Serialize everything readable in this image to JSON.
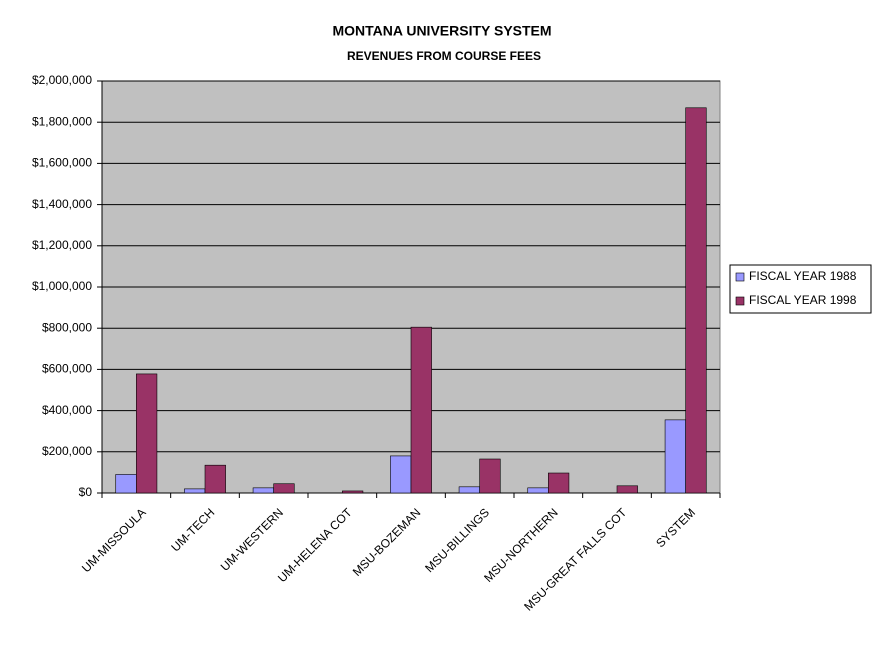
{
  "chart_data": {
    "type": "bar",
    "title": "MONTANA UNIVERSITY SYSTEM",
    "subtitle": "REVENUES FROM COURSE FEES",
    "categories": [
      "UM-MISSOULA",
      "UM-TECH",
      "UM-WESTERN",
      "UM-HELENA COT",
      "MSU-BOZEMAN",
      "MSU-BILLINGS",
      "MSU-NORTHERN",
      "MSU-GREAT FALLS COT",
      "SYSTEM"
    ],
    "series": [
      {
        "name": "FISCAL YEAR 1988",
        "color": "#9999ff",
        "values": [
          90000,
          20000,
          25000,
          0,
          180000,
          30000,
          25000,
          0,
          355000
        ]
      },
      {
        "name": "FISCAL YEAR 1998",
        "color": "#993366",
        "values": [
          578000,
          135000,
          45000,
          10000,
          805000,
          165000,
          97000,
          35000,
          1870000
        ]
      }
    ],
    "ylim": [
      0,
      2000000
    ],
    "yticks": [
      {
        "value": 0,
        "label": "$0"
      },
      {
        "value": 200000,
        "label": "$200,000"
      },
      {
        "value": 400000,
        "label": "$400,000"
      },
      {
        "value": 600000,
        "label": "$600,000"
      },
      {
        "value": 800000,
        "label": "$800,000"
      },
      {
        "value": 1000000,
        "label": "$1,000,000"
      },
      {
        "value": 1200000,
        "label": "$1,200,000"
      },
      {
        "value": 1400000,
        "label": "$1,400,000"
      },
      {
        "value": 1600000,
        "label": "$1,600,000"
      },
      {
        "value": 1800000,
        "label": "$1,800,000"
      },
      {
        "value": 2000000,
        "label": "$2,000,000"
      }
    ],
    "grid": true,
    "legend": "right"
  }
}
